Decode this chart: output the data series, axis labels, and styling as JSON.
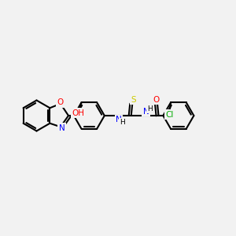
{
  "background_color": "#f2f2f2",
  "bond_color": "#000000",
  "bond_width": 1.5,
  "atom_colors": {
    "O": "#ff0000",
    "N": "#0000ff",
    "S": "#cccc00",
    "Cl": "#00aa00",
    "C": "#000000",
    "H": "#000000"
  },
  "font_size": 7.5
}
